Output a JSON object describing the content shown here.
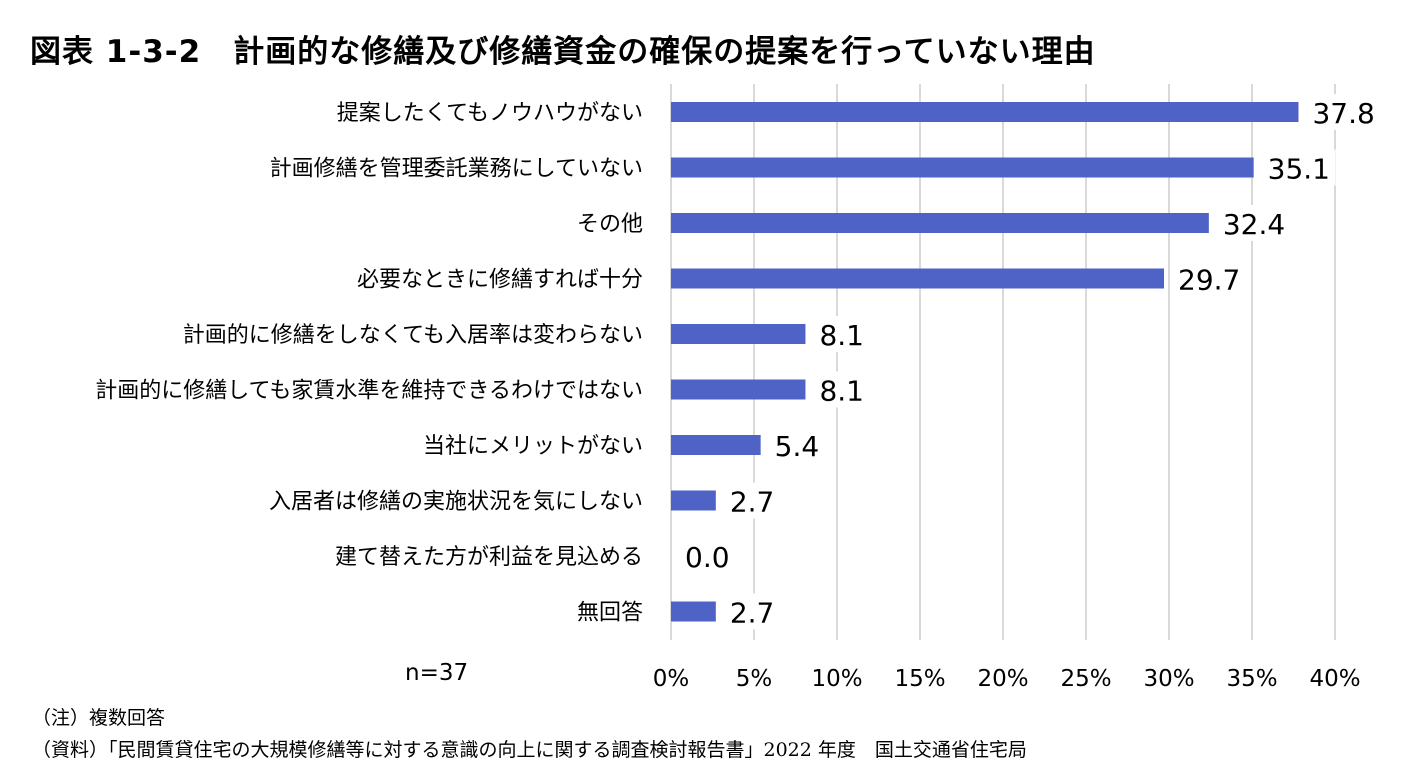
{
  "figure": {
    "title": "図表 1-3-2　計画的な修繕及び修繕資金の確保の提案を行っていない理由",
    "n_label": "n=37"
  },
  "chart_data": {
    "type": "bar",
    "orientation": "horizontal",
    "categories": [
      "提案したくてもノウハウがない",
      "計画修繕を管理委託業務にしていない",
      "その他",
      "必要なときに修繕すれば十分",
      "計画的に修繕をしなくても入居率は変わらない",
      "計画的に修繕しても家賃水準を維持できるわけではない",
      "当社にメリットがない",
      "入居者は修繕の実施状況を気にしない",
      "建て替えた方が利益を見込める",
      "無回答"
    ],
    "values": [
      37.8,
      35.1,
      32.4,
      29.7,
      8.1,
      8.1,
      5.4,
      2.7,
      0.0,
      2.7
    ],
    "data_labels": [
      "37.8",
      "35.1",
      "32.4",
      "29.7",
      "8.1",
      "8.1",
      "5.4",
      "2.7",
      "0.0",
      "2.7"
    ],
    "xlim": [
      0,
      40
    ],
    "x_ticks": [
      0,
      5,
      10,
      15,
      20,
      25,
      30,
      35,
      40
    ],
    "x_tick_labels": [
      "0%",
      "5%",
      "10%",
      "15%",
      "20%",
      "25%",
      "30%",
      "35%",
      "40%"
    ],
    "grid": true,
    "bar_color": "#4f62c6",
    "grid_color": "#d9d9d9"
  },
  "notes": {
    "note": "（注）複数回答",
    "source": "（資料）「民間賃貸住宅の大規模修繕等に対する意識の向上に関する調査検討報告書」2022 年度　国土交通省住宅局"
  }
}
